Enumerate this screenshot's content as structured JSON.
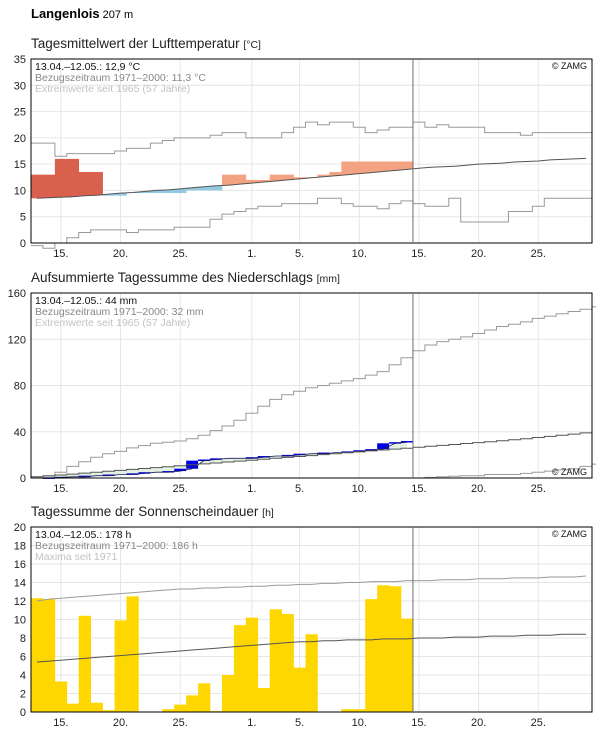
{
  "station": {
    "name": "Langenlois",
    "altitude": "207 m"
  },
  "x_tick_labels": [
    "15.",
    "20.",
    "25.",
    "1.",
    "5.",
    "10.",
    "15.",
    "20.",
    "25."
  ],
  "copyright": "© ZAMG",
  "colors": {
    "temp_warm_strong": "#d8604c",
    "temp_warm": "#f3a381",
    "temp_cold": "#93c9e2",
    "precip_above": "#0000e6",
    "precip_fill": "#e2f1e2",
    "precip_below_fill": "#f6e7b5",
    "sun_bar": "#ffd700",
    "grid": "#e6e6e6",
    "line": "#7a7a7a",
    "today_line": "#6e6e6e"
  },
  "charts": [
    {
      "title": "Tagesmittelwert der Lufttemperatur",
      "unit": "[°C]",
      "info1": "13.04.–12.05.: 12,9 °C",
      "info2": "Bezugszeitraum 1971–2000: 11,3 °C",
      "info3": "Extremwerte seit 1965 (57 Jahre)",
      "yticks": [
        "35",
        "30",
        "25",
        "20",
        "15",
        "10",
        "5",
        "0"
      ]
    },
    {
      "title": "Aufsummierte Tagessumme des Niederschlags",
      "unit": "[mm]",
      "info1": "13.04.–12.05.: 44 mm",
      "info2": "Bezugszeitraum 1971–2000: 32 mm",
      "info3": "Extremwerte seit 1965 (57 Jahre)",
      "yticks": [
        "160",
        "120",
        "80",
        "40",
        "0"
      ]
    },
    {
      "title": "Tagessumme der Sonnenscheindauer",
      "unit": "[h]",
      "info1": "13.04.–12.05.: 178 h",
      "info2": "Bezugszeitraum 1971–2000: 186 h",
      "info3": "Maxima seit 1971",
      "yticks": [
        "20",
        "18",
        "16",
        "14",
        "12",
        "10",
        "8",
        "6",
        "4",
        "2",
        "0"
      ]
    }
  ],
  "chart_data": [
    {
      "type": "line",
      "title": "Tagesmittelwert der Lufttemperatur",
      "ylabel": "[°C]",
      "ylim": [
        0,
        35
      ],
      "day_range": [
        "13.04.",
        "29.05."
      ],
      "observed_period": [
        "13.04.",
        "12.05."
      ],
      "series": [
        {
          "name": "13.04.–12.05.",
          "values": [
            13,
            13,
            16,
            16,
            13.5,
            13.5,
            9,
            9,
            9.5,
            9.5,
            9.5,
            9.5,
            9.5,
            10,
            10,
            10,
            13,
            13,
            12,
            12,
            13,
            13,
            12.5,
            12.5,
            13,
            13.5,
            15.5,
            15.5,
            15.5,
            15.5,
            15.5,
            15.5,
            15.5,
            15.5,
            16,
            16,
            16,
            16,
            17,
            17,
            18,
            18,
            20,
            20,
            20
          ]
        },
        {
          "name": "Bezugszeitraum 1971–2000",
          "values": [
            8.5,
            8.6,
            8.7,
            8.8,
            9,
            9.1,
            9.3,
            9.5,
            9.6,
            9.8,
            10,
            10.1,
            10.3,
            10.5,
            10.7,
            10.9,
            11,
            11.2,
            11.4,
            11.6,
            11.8,
            12,
            12.2,
            12.4,
            12.6,
            12.8,
            13,
            13.2,
            13.4,
            13.6,
            13.8,
            14,
            14.2,
            14.4,
            14.5,
            14.6,
            14.8,
            15,
            15.1,
            15.2,
            15.4,
            15.5,
            15.6,
            15.8,
            15.9,
            16,
            16.1
          ]
        },
        {
          "name": "Maximum",
          "values": [
            19,
            19,
            16.5,
            17,
            17,
            17,
            17,
            17.5,
            18,
            18,
            19,
            19.5,
            20,
            20,
            20,
            20.5,
            21,
            21,
            20,
            20,
            20,
            21,
            22,
            23,
            22.5,
            23,
            23,
            22,
            21,
            21.5,
            22,
            22,
            23,
            22,
            22.5,
            22,
            22,
            22,
            21,
            21,
            21,
            20.5,
            21,
            21,
            21,
            21,
            21
          ]
        },
        {
          "name": "Minimum",
          "values": [
            -0.5,
            -1,
            0,
            1,
            2,
            2.5,
            2.5,
            2.5,
            2,
            2.5,
            2.5,
            2.5,
            3,
            3,
            3,
            4.5,
            5.5,
            6,
            6.5,
            7,
            7,
            7.5,
            7.5,
            7.5,
            8.5,
            8.5,
            7.5,
            7,
            7,
            6.5,
            7.5,
            8,
            7.5,
            7,
            7,
            8.5,
            4,
            4,
            4,
            4,
            6,
            6,
            7,
            8.5,
            8.5,
            8.5,
            8.5
          ]
        }
      ]
    },
    {
      "type": "line",
      "title": "Aufsummierte Tagessumme des Niederschlags",
      "ylabel": "[mm]",
      "ylim": [
        0,
        160
      ],
      "series": [
        {
          "name": "13.04.–12.05.",
          "values": [
            0,
            0,
            0.5,
            1,
            1,
            2,
            2,
            3,
            3,
            4,
            5,
            5,
            6,
            8,
            15,
            16,
            17,
            17,
            17,
            18,
            19,
            19,
            20,
            21,
            21,
            22,
            22,
            23,
            24,
            25,
            30,
            31,
            32,
            33,
            34,
            35,
            36,
            37,
            44
          ]
        },
        {
          "name": "Bezugszeitraum 1971–2000",
          "values": [
            1,
            1.8,
            2.6,
            3.4,
            4.2,
            5,
            5.8,
            6.6,
            7.4,
            8.2,
            9,
            9.8,
            10.6,
            11.4,
            12.2,
            13,
            13.8,
            14.6,
            15.4,
            16.2,
            17,
            17.8,
            18.6,
            19.4,
            20.2,
            21,
            21.8,
            22.6,
            23.4,
            24.2,
            25,
            25.8,
            26.6,
            27.4,
            28.2,
            29,
            29.8,
            30.6,
            31.4,
            32.2,
            33,
            34,
            35,
            36,
            37,
            38,
            39,
            40,
            41,
            42,
            43,
            44.5,
            46,
            47.5,
            49,
            50.5,
            52,
            53.5,
            55,
            56.5,
            58,
            59.5,
            61,
            62.5,
            63.5,
            64
          ]
        },
        {
          "name": "Maximum",
          "values": [
            0,
            2,
            5,
            10,
            14,
            18,
            21,
            23,
            26,
            28,
            30,
            31,
            32,
            34,
            37,
            41,
            45,
            50,
            56,
            62,
            68,
            72,
            75,
            78,
            80,
            82,
            84,
            86,
            89,
            92,
            98,
            104,
            110,
            115,
            118,
            120,
            122,
            125,
            128,
            131,
            133,
            135,
            138,
            140,
            142,
            144,
            146,
            148
          ]
        },
        {
          "name": "Minimum",
          "values": [
            0,
            0,
            0,
            0,
            0,
            0,
            0,
            0,
            0,
            0,
            0,
            0,
            0,
            0,
            0,
            0,
            0,
            0,
            0,
            0,
            0,
            0,
            0,
            0,
            0,
            0,
            0,
            0,
            0,
            0,
            0,
            0,
            0,
            0.5,
            1,
            1.5,
            2,
            2,
            3,
            3,
            3,
            4,
            5,
            6,
            7,
            8,
            10,
            12,
            14,
            16,
            18,
            20
          ]
        }
      ]
    },
    {
      "type": "bar",
      "title": "Tagessumme der Sonnenscheindauer",
      "ylabel": "[h]",
      "ylim": [
        0,
        20
      ],
      "series": [
        {
          "name": "13.04.–12.05.",
          "values": [
            12.3,
            12.2,
            3.3,
            0.9,
            10.4,
            1.0,
            0.2,
            9.9,
            12.5,
            0,
            0,
            0.3,
            0.8,
            1.8,
            3.1,
            0.1,
            4.0,
            9.4,
            10.2,
            2.6,
            11.1,
            10.6,
            4.8,
            8.4,
            0,
            0,
            0.3,
            0.3,
            12.2,
            13.7,
            13.6,
            10.1
          ]
        },
        {
          "name": "Bezugszeitraum 1971–2000",
          "values": [
            5.4,
            5.5,
            5.6,
            5.7,
            5.8,
            5.9,
            6.0,
            6.1,
            6.2,
            6.3,
            6.4,
            6.5,
            6.6,
            6.7,
            6.8,
            6.9,
            7.0,
            7.1,
            7.2,
            7.3,
            7.4,
            7.5,
            7.6,
            7.6,
            7.7,
            7.7,
            7.8,
            7.8,
            7.8,
            7.9,
            7.9,
            7.9,
            8.0,
            8.0,
            8.0,
            8.1,
            8.1,
            8.1,
            8.2,
            8.2,
            8.2,
            8.3,
            8.3,
            8.3,
            8.4,
            8.4,
            8.4
          ]
        },
        {
          "name": "Maxima seit 1971",
          "values": [
            12.0,
            12.2,
            12.3,
            12.4,
            12.5,
            12.6,
            12.7,
            12.8,
            12.9,
            13.0,
            13.1,
            13.2,
            13.3,
            13.3,
            13.4,
            13.4,
            13.5,
            13.5,
            13.6,
            13.6,
            13.7,
            13.7,
            13.8,
            13.8,
            13.9,
            13.9,
            14.0,
            14.0,
            14.1,
            14.1,
            14.1,
            14.2,
            14.2,
            14.2,
            14.3,
            14.3,
            14.3,
            14.4,
            14.4,
            14.4,
            14.5,
            14.5,
            14.5,
            14.6,
            14.6,
            14.6,
            14.7
          ]
        }
      ]
    }
  ]
}
